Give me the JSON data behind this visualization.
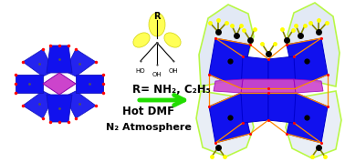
{
  "background_color": "#ffffff",
  "arrow_color": "#22dd00",
  "text_line1": "R= NH₂, C₂H₅",
  "text_line2": "Hot DMF",
  "text_line3": "N₂ Atmosphere",
  "text_fontsize": 8.5,
  "blue_color": "#1111ee",
  "purple_color": "#cc44cc",
  "red_color": "#ff0000",
  "black_color": "#000000",
  "yellow_color": "#ffff00",
  "yellow_green": "#aaff00",
  "orange_color": "#ff8800",
  "grey_ball": "#888888",
  "figure_width": 3.78,
  "figure_height": 1.78,
  "dpi": 100
}
